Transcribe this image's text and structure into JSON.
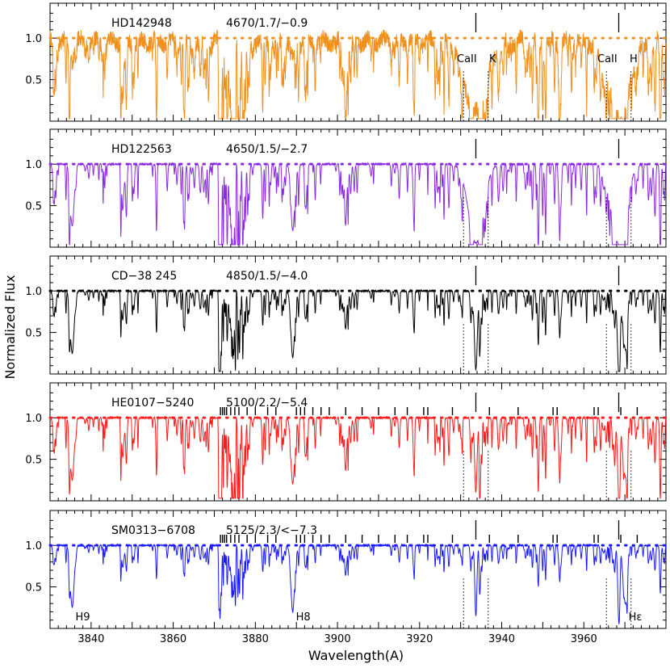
{
  "chart_data": {
    "type": "line",
    "xlabel": "Wavelength(A)",
    "ylabel": "Normalized  Flux",
    "xlim": [
      3830,
      3980
    ],
    "ylim": [
      0,
      1.42
    ],
    "x_ticks": [
      3840,
      3860,
      3880,
      3900,
      3920,
      3940,
      3960
    ],
    "y_ticks": [
      0.5,
      1.0
    ],
    "y_tick_labels": [
      "0.5",
      "1.0"
    ],
    "reference_lines": [
      {
        "name": "CaII K",
        "label": "K",
        "center": 3933.7,
        "window": [
          3930.7,
          3936.7
        ]
      },
      {
        "name": "CaII H",
        "label": "H",
        "center": 3968.5,
        "window": [
          3965.5,
          3971.5
        ]
      }
    ],
    "line_labels": [
      {
        "text": "H9",
        "x": 3835.4
      },
      {
        "text": "H8",
        "x": 3889.1
      },
      {
        "text": "Hε",
        "x": 3970.1
      }
    ],
    "panels": [
      {
        "star": "HD142948",
        "params": "4670/1.7/−0.9",
        "color": "#f0901e",
        "continuum": 1.0,
        "noise": 0.22,
        "depth_scale": 1.0,
        "line_marks": false
      },
      {
        "star": "HD122563",
        "params": "4650/1.5/−2.7",
        "color": "#8a2be2",
        "continuum": 1.0,
        "noise": 0.02,
        "depth_scale": 0.72,
        "line_marks": false
      },
      {
        "star": "CD−38  245",
        "params": "4850/1.5/−4.0",
        "color": "#000000",
        "continuum": 1.0,
        "noise": 0.02,
        "depth_scale": 0.45,
        "line_marks": false
      },
      {
        "star": "HE0107−5240",
        "params": "5100/2.2/−5.4",
        "color": "#ff1a1a",
        "continuum": 1.0,
        "noise": 0.02,
        "depth_scale": 0.62,
        "line_marks": true
      },
      {
        "star": "SM0313−6708",
        "params": "5125/2.3/<−7.3",
        "color": "#1a1aff",
        "continuum": 1.0,
        "noise": 0.02,
        "depth_scale": 0.35,
        "line_marks": true
      }
    ],
    "ch_mark_wavelengths": [
      3871.5,
      3872,
      3872.5,
      3873,
      3874,
      3875,
      3876,
      3878,
      3880,
      3883,
      3885,
      3890,
      3891,
      3892,
      3894,
      3896,
      3898,
      3902,
      3906,
      3910,
      3914,
      3917,
      3921,
      3922,
      3928,
      3937,
      3944,
      3952.5,
      3953.5,
      3962.5,
      3963.5,
      3969,
      3973
    ]
  }
}
